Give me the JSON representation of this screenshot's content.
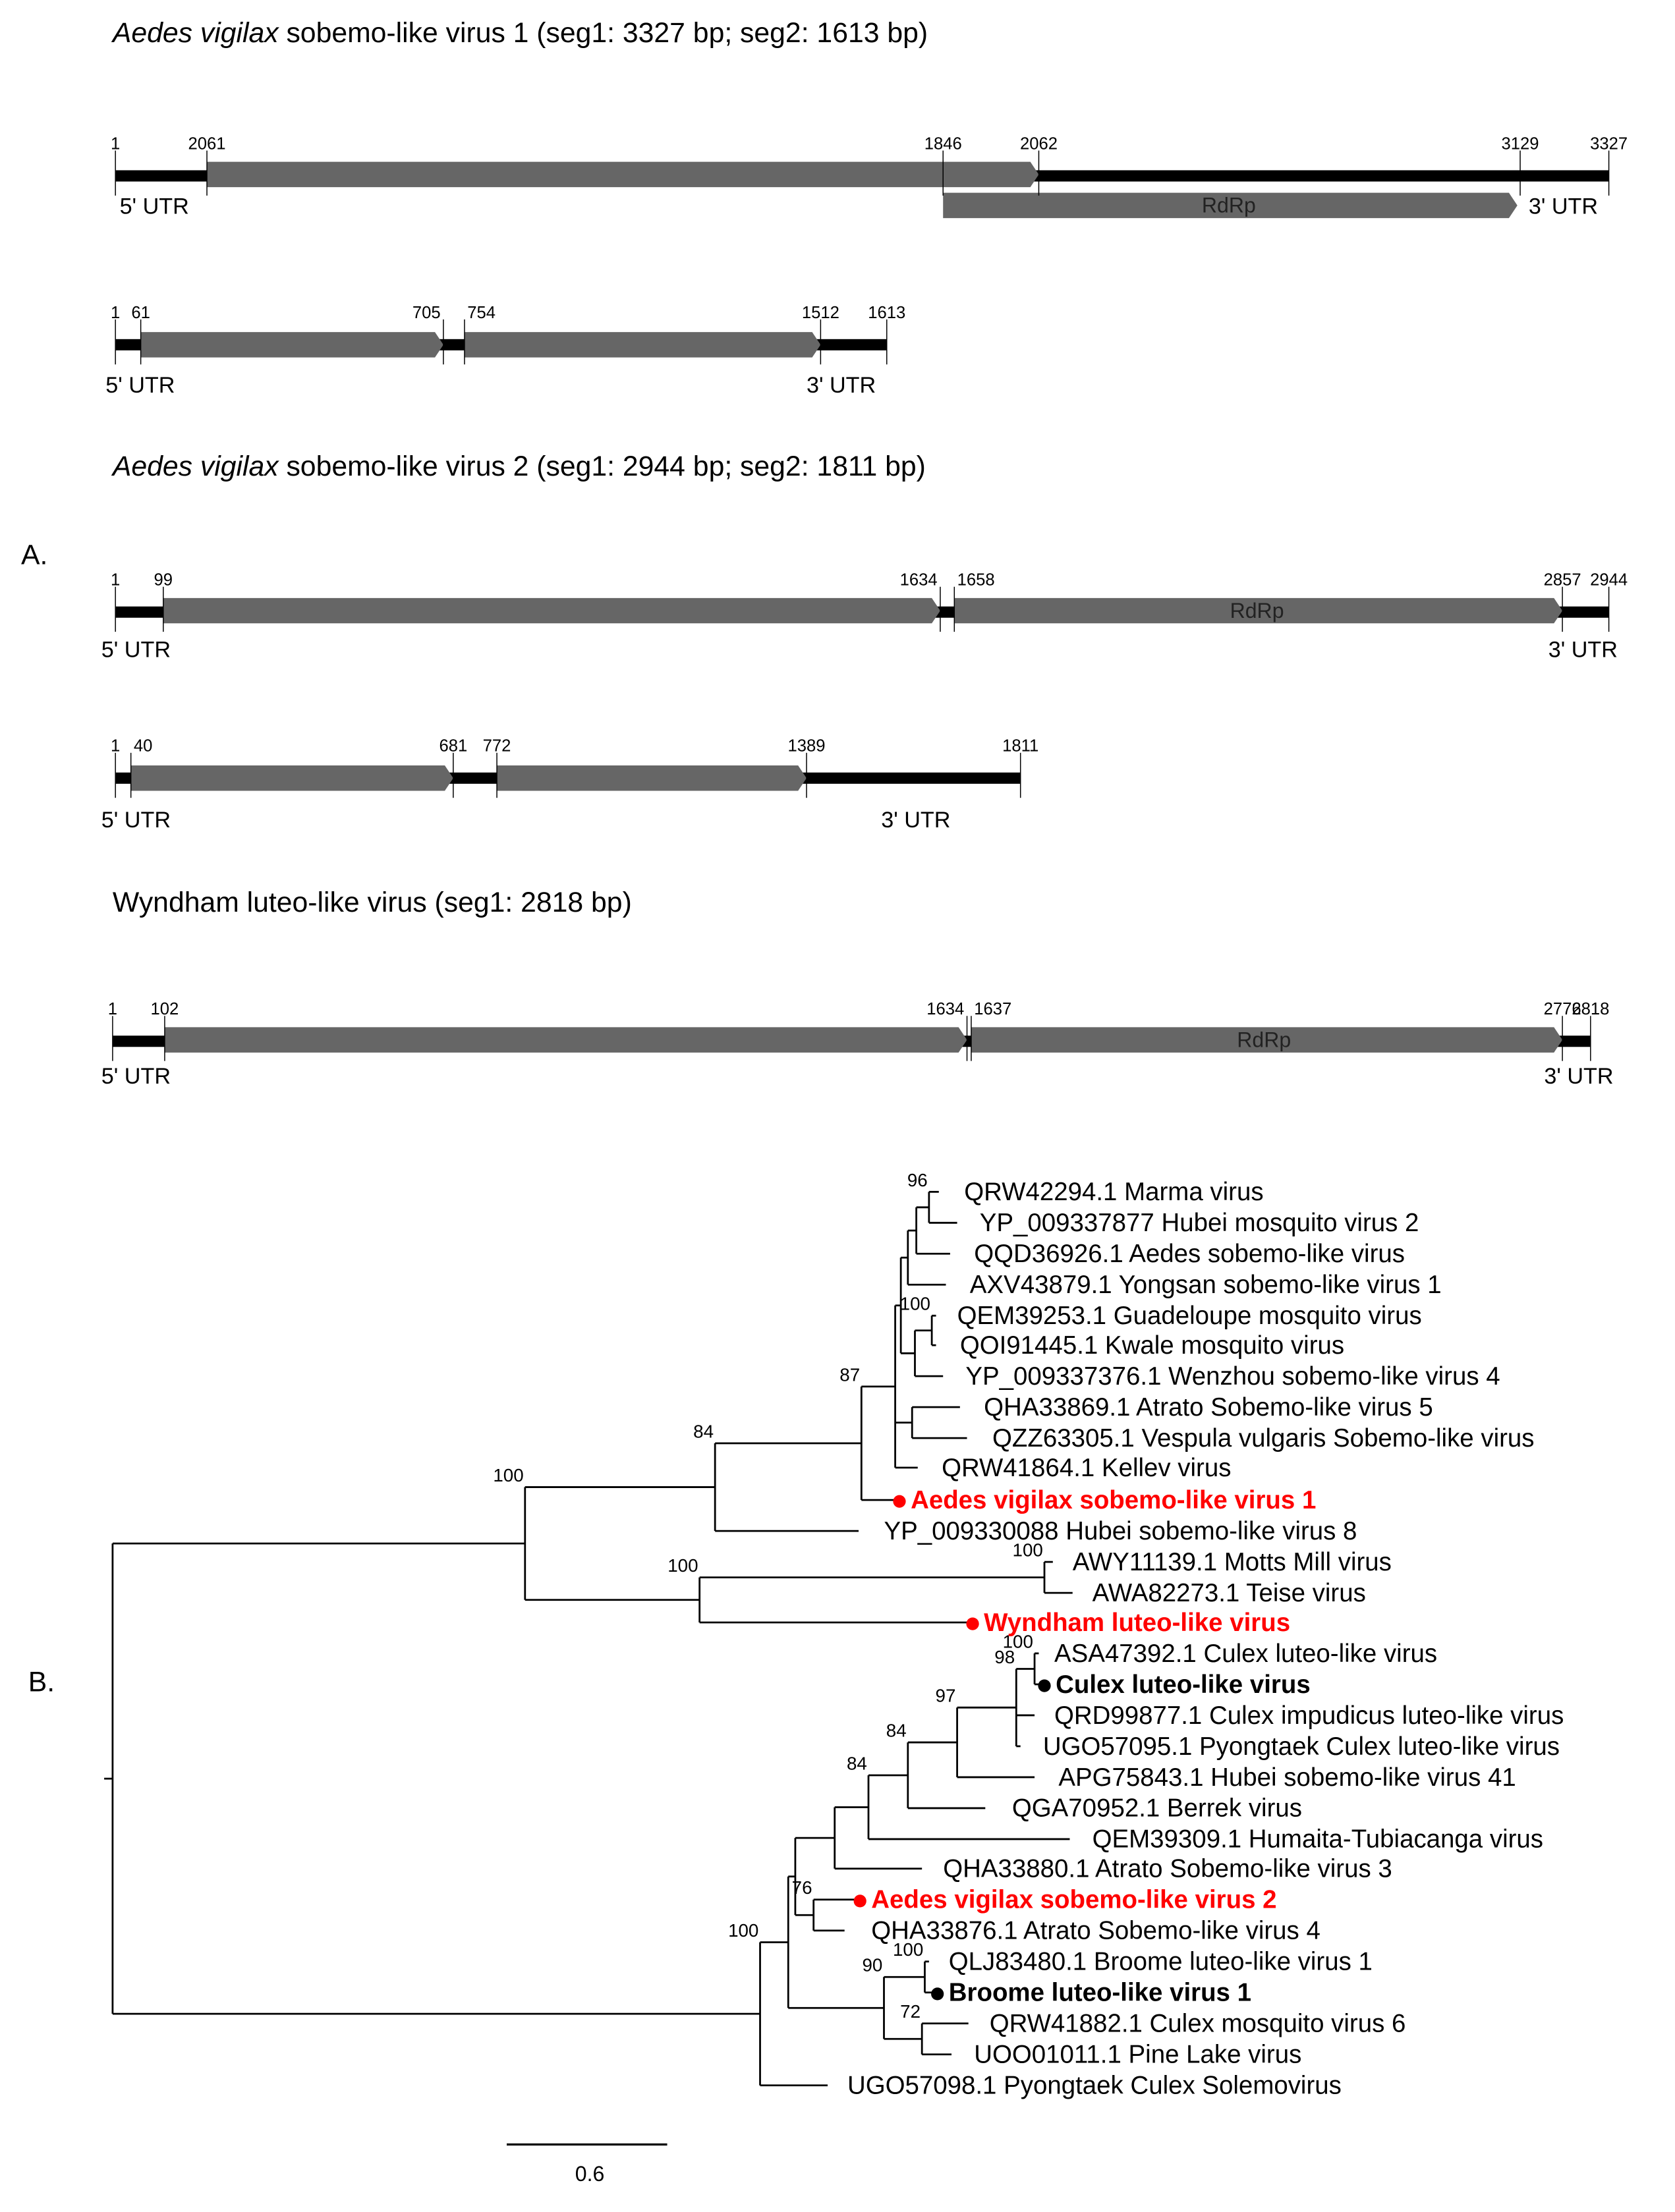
{
  "panel_labels": {
    "a": "A.",
    "b": "B."
  },
  "titles": [
    {
      "italic": "Aedes vigilax",
      "rest": " sobemo-like virus 1 (seg1: 3327 bp; seg2: 1613 bp)"
    },
    {
      "italic": "Aedes vigilax",
      "rest": " sobemo-like virus 2 (seg1: 2944 bp; seg2: 1811 bp)"
    },
    {
      "italic": "",
      "rest": "Wyndham luteo-like virus (seg1: 2818 bp)"
    }
  ],
  "genome_maps": [
    {
      "positions": [
        "1",
        "2061",
        "1846",
        "2062",
        "3129",
        "3327"
      ],
      "utr5": "5' UTR",
      "utr3": "3' UTR",
      "orf_label": "RdRp"
    },
    {
      "positions": [
        "1",
        "61",
        "705",
        "754",
        "1512",
        "1613"
      ],
      "utr5": "5' UTR",
      "utr3": "3' UTR"
    },
    {
      "positions": [
        "1",
        "99",
        "1634",
        "1658",
        "2857",
        "2944"
      ],
      "utr5": "5' UTR",
      "utr3": "3' UTR",
      "orf_label": "RdRp"
    },
    {
      "positions": [
        "1",
        "40",
        "681",
        "772",
        "1389",
        "1811"
      ],
      "utr5": "5' UTR",
      "utr3": "3' UTR"
    },
    {
      "positions": [
        "1",
        "102",
        "1634",
        "1637",
        "2776",
        "2818"
      ],
      "utr5": "5' UTR",
      "utr3": "3' UTR",
      "orf_label": "RdRp"
    }
  ],
  "colors": {
    "orf": "#666666",
    "highlight": "#ff0000",
    "backbone": "#000000"
  },
  "tree": {
    "leaves": [
      {
        "label": "QRW42294.1 Marma virus"
      },
      {
        "label": "YP_009337877 Hubei mosquito virus 2"
      },
      {
        "label": "QQD36926.1 Aedes sobemo-like virus"
      },
      {
        "label": "AXV43879.1 Yongsan sobemo-like virus 1"
      },
      {
        "label": "QEM39253.1 Guadeloupe mosquito virus"
      },
      {
        "label": "QOI91445.1 Kwale mosquito virus"
      },
      {
        "label": "YP_009337376.1 Wenzhou sobemo-like virus 4"
      },
      {
        "label": "QHA33869.1 Atrato Sobemo-like virus 5"
      },
      {
        "label": "QZZ63305.1 Vespula vulgaris Sobemo-like virus"
      },
      {
        "label": "QRW41864.1 Kellev virus"
      },
      {
        "label": "Aedes vigilax sobemo-like virus 1",
        "style": "red"
      },
      {
        "label": "YP_009330088 Hubei sobemo-like virus 8"
      },
      {
        "label": "AWY11139.1 Motts Mill virus"
      },
      {
        "label": "AWA82273.1 Teise virus"
      },
      {
        "label": "Wyndham luteo-like virus",
        "style": "red"
      },
      {
        "label": "ASA47392.1 Culex luteo-like virus"
      },
      {
        "label": "Culex luteo-like virus",
        "style": "bold"
      },
      {
        "label": "QRD99877.1 Culex impudicus luteo-like virus"
      },
      {
        "label": "UGO57095.1 Pyongtaek Culex luteo-like virus"
      },
      {
        "label": "APG75843.1 Hubei sobemo-like virus 41"
      },
      {
        "label": "QGA70952.1 Berrek virus"
      },
      {
        "label": "QEM39309.1 Humaita-Tubiacanga virus"
      },
      {
        "label": "QHA33880.1 Atrato Sobemo-like virus 3"
      },
      {
        "label": "Aedes vigilax sobemo-like virus 2",
        "style": "red"
      },
      {
        "label": "QHA33876.1 Atrato Sobemo-like virus 4"
      },
      {
        "label": "QLJ83480.1 Broome luteo-like virus 1"
      },
      {
        "label": "Broome luteo-like virus 1",
        "style": "bold"
      },
      {
        "label": "QRW41882.1 Culex mosquito virus 6"
      },
      {
        "label": "UOO01011.1 Pine Lake virus"
      },
      {
        "label": "UGO57098.1 Pyongtaek Culex Solemovirus"
      }
    ],
    "bootstrap": {
      "upper": "100",
      "lower": "100",
      "n84a": "84",
      "n87": "87",
      "n96": "96",
      "n100a": "100",
      "n100b": "100",
      "n100c": "100",
      "n84b": "84",
      "n84c": "84",
      "n97": "97",
      "n98": "98",
      "n100d": "100",
      "n76": "76",
      "n90": "90",
      "n100e": "100",
      "n72": "72"
    },
    "scale_bar": "0.6"
  }
}
